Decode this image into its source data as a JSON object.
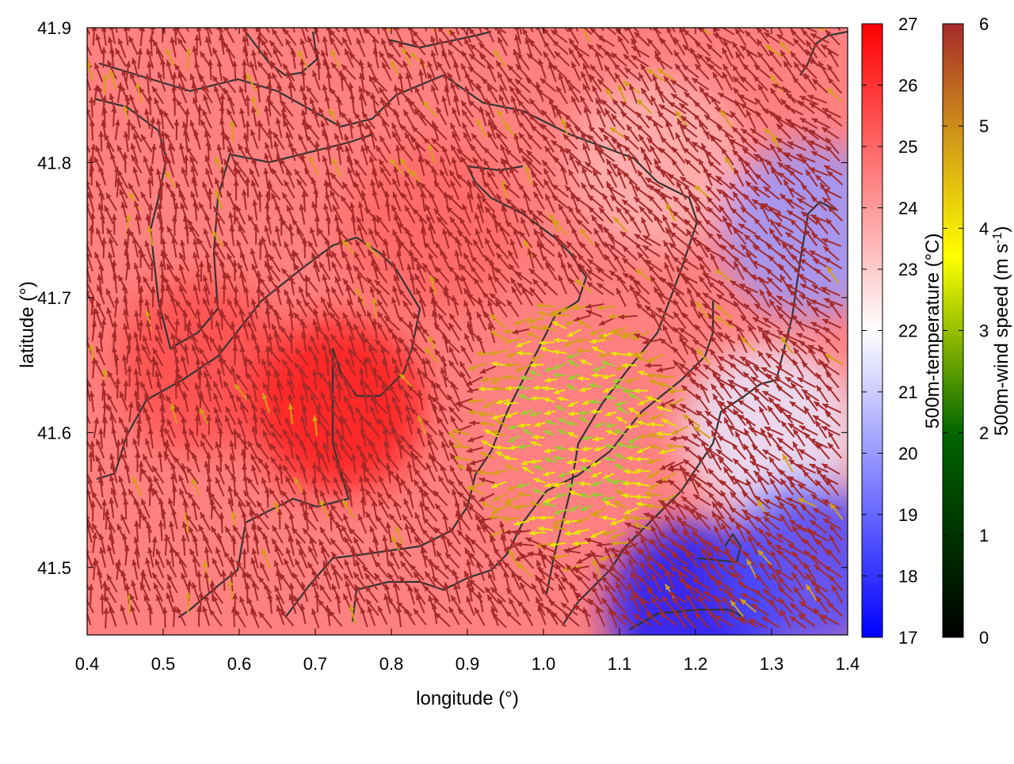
{
  "chart_data": {
    "type": "heatmap",
    "title": "",
    "xlabel": "longitude (°)",
    "ylabel": "latitude (°)",
    "xlim": [
      0.4,
      1.4
    ],
    "ylim": [
      41.45,
      41.9
    ],
    "xticks": [
      "0.4",
      "0.5",
      "0.6",
      "0.7",
      "0.8",
      "0.9",
      "1.0",
      "1.1",
      "1.2",
      "1.3",
      "1.4"
    ],
    "yticks": [
      "41.5",
      "41.6",
      "41.7",
      "41.8",
      "41.9"
    ],
    "grid": false,
    "temperature_colorbar": {
      "label": "500m-temperature (°C)",
      "range": [
        17,
        27
      ],
      "ticks": [
        "17",
        "18",
        "19",
        "20",
        "21",
        "22",
        "23",
        "24",
        "25",
        "26",
        "27"
      ],
      "colors": {
        "low": "#0000ff",
        "mid": "#ffffff",
        "high": "#ff0000"
      }
    },
    "windspeed_colorbar": {
      "label": "500m-wind speed (m s-1)",
      "label_base": "500m-wind speed (m s",
      "label_exp": "-1",
      "label_end": ")",
      "range": [
        0,
        6
      ],
      "ticks": [
        "0",
        "1",
        "2",
        "3",
        "4",
        "5",
        "6"
      ],
      "colors": [
        "#000000",
        "#006400",
        "#ffff00",
        "#d4a017",
        "#a52a2a"
      ]
    },
    "temperature_field": {
      "description_points": [
        {
          "lon": 0.55,
          "lat": 41.65,
          "temp": 25.5
        },
        {
          "lon": 0.73,
          "lat": 41.62,
          "temp": 26.5
        },
        {
          "lon": 0.85,
          "lat": 41.75,
          "temp": 25.0
        },
        {
          "lon": 1.0,
          "lat": 41.6,
          "temp": 24.5
        },
        {
          "lon": 1.15,
          "lat": 41.8,
          "temp": 23.5
        },
        {
          "lon": 1.3,
          "lat": 41.6,
          "temp": 21.5
        },
        {
          "lon": 1.35,
          "lat": 41.75,
          "temp": 20.0
        },
        {
          "lon": 1.2,
          "lat": 41.47,
          "temp": 17.5
        },
        {
          "lon": 1.35,
          "lat": 41.5,
          "temp": 18.5
        }
      ]
    },
    "wind_field": {
      "prevailing_direction": "north-northwest",
      "low_speed_zone": {
        "lon": [
          0.9,
          1.2
        ],
        "lat": [
          41.5,
          41.7
        ],
        "speed": 3.0
      }
    },
    "contours": "topography"
  }
}
